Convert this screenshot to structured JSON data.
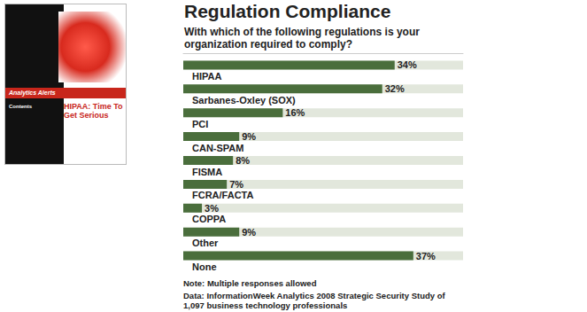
{
  "chart_data": {
    "type": "bar",
    "orientation": "horizontal",
    "title": "Regulation Compliance",
    "subtitle": "With which of the following regulations is your organization required to comply?",
    "categories": [
      "HIPAA",
      "Sarbanes-Oxley (SOX)",
      "PCI",
      "CAN-SPAM",
      "FISMA",
      "FCRA/FACTA",
      "COPPA",
      "Other",
      "None"
    ],
    "values": [
      34,
      32,
      16,
      9,
      8,
      7,
      3,
      9,
      37
    ],
    "value_labels": [
      "34%",
      "32%",
      "16%",
      "9%",
      "8%",
      "7%",
      "3%",
      "9%",
      "37%"
    ],
    "data_labels": true,
    "color": "#4a6e3c",
    "xlim": [
      0,
      45
    ],
    "grid": false,
    "tick_labels": "y",
    "annotations": [
      "Note: Multiple responses allowed",
      "Data: InformationWeek Analytics 2008 Strategic Security Study of 1,097 business technology professionals"
    ]
  },
  "cover": {
    "section": "Analytics Alerts",
    "headline": "HIPAA: Time To Get Serious",
    "contents_heading": "Contents"
  }
}
